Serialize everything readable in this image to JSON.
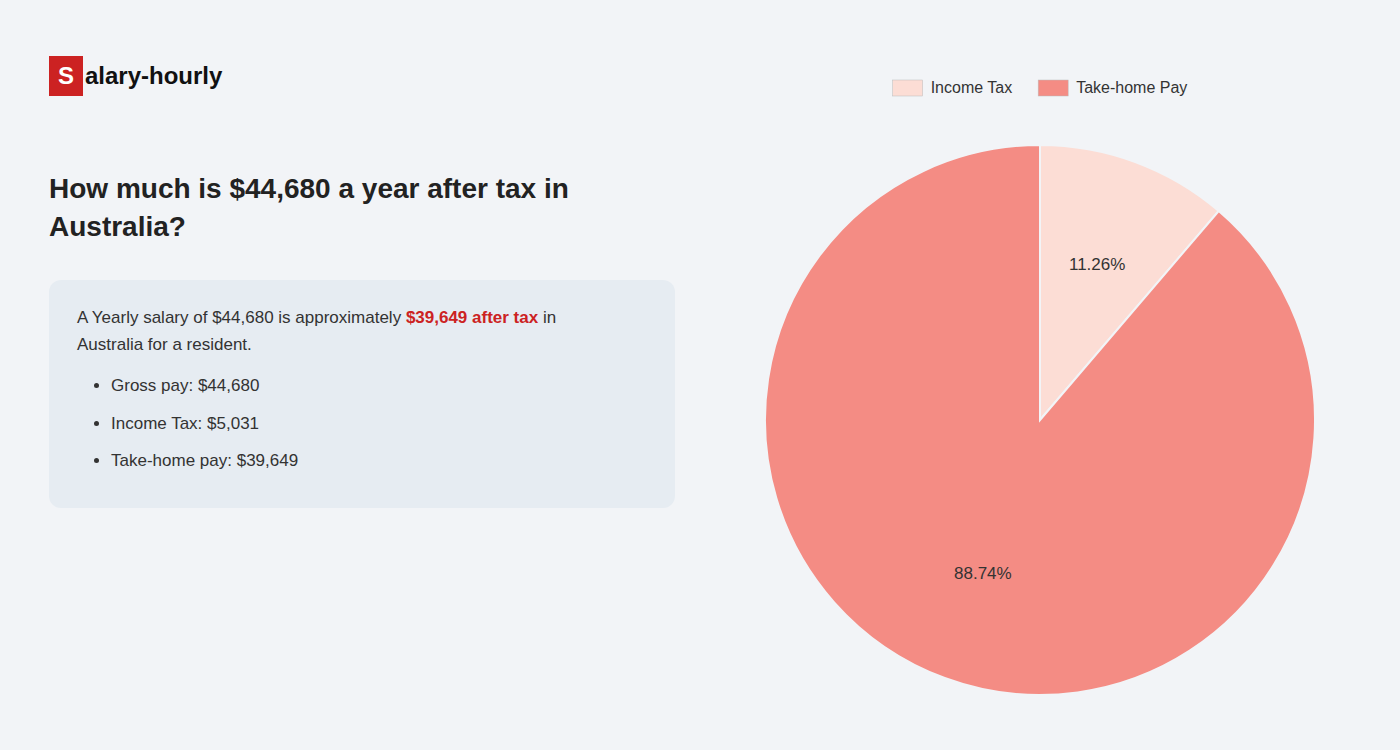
{
  "chart_data": {
    "type": "pie",
    "title": "How much is $44,680 a year after tax in Australia?",
    "categories": [
      "Income Tax",
      "Take-home Pay"
    ],
    "values": [
      11.26,
      88.74
    ],
    "value_labels": [
      "11.26%",
      "88.74%"
    ],
    "colors": [
      "#fcddd5",
      "#f48c84"
    ],
    "data_labels": true,
    "legend": "top",
    "annotations": [
      {
        "text": "S"
      },
      {
        "text": "alary-hourly"
      },
      {
        "text": "A Yearly salary of $44,680 is approximately "
      },
      {
        "text": "$39,649 after tax",
        "color": "#cc2222"
      },
      {
        "text": " in"
      },
      {
        "text": "Australia for a resident."
      },
      {
        "text": "Gross pay: $44,680"
      },
      {
        "text": "Income Tax: $5,031"
      },
      {
        "text": "Take-home pay: $39,649"
      }
    ]
  }
}
